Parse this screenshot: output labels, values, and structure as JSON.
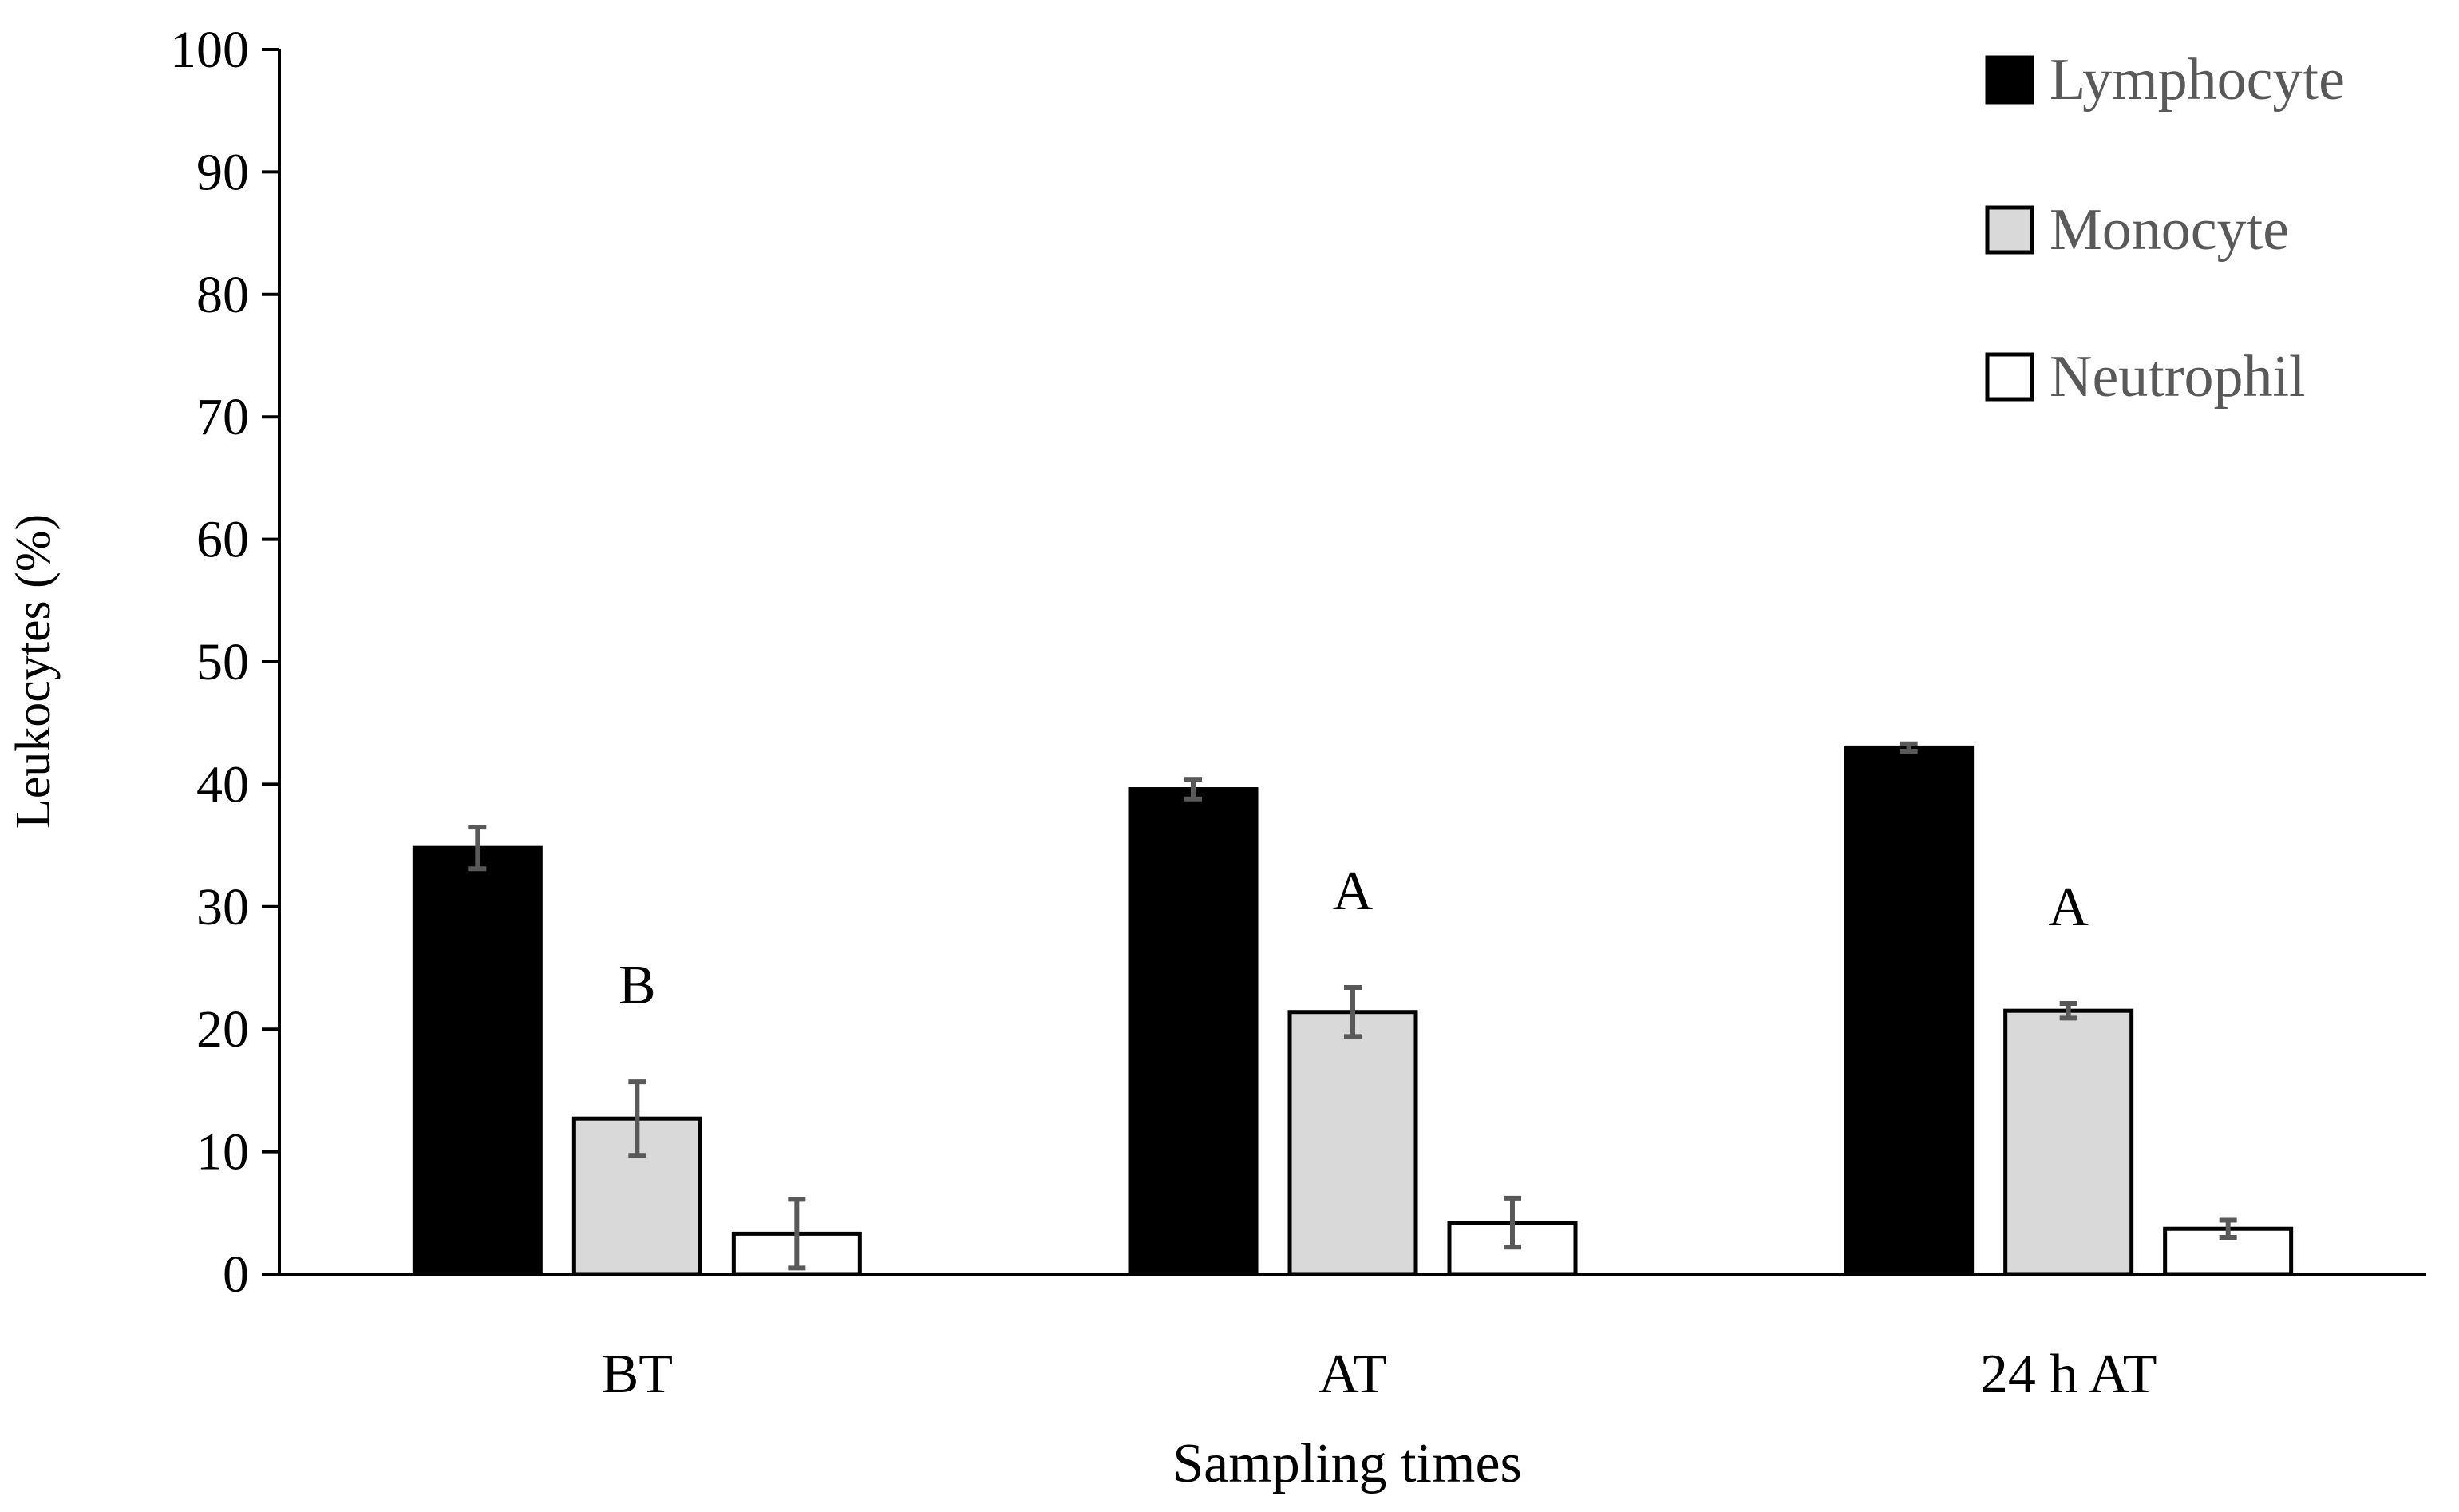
{
  "chart_data": {
    "type": "bar",
    "title": "",
    "xlabel": "Sampling times",
    "ylabel": "Leukocytes (%)",
    "ylim": [
      0,
      100
    ],
    "yticks": [
      0,
      10,
      20,
      30,
      40,
      50,
      60,
      70,
      80,
      90,
      100
    ],
    "grid": false,
    "legend_position": "top-right",
    "categories": [
      "BT",
      "AT",
      "24 h AT"
    ],
    "series": [
      {
        "name": "Lymphocyte",
        "color": "#000000",
        "values": [
          34.8,
          39.6,
          43.0
        ],
        "errors": [
          1.7,
          0.8,
          0.3
        ]
      },
      {
        "name": "Monocyte",
        "color": "#d9d9d9",
        "values": [
          12.7,
          21.4,
          21.5
        ],
        "errors": [
          3.0,
          2.0,
          0.6
        ]
      },
      {
        "name": "Neutrophil",
        "color": "#ffffff",
        "values": [
          3.3,
          4.2,
          3.7
        ],
        "errors": [
          2.8,
          2.0,
          0.7
        ]
      }
    ],
    "annotations": [
      {
        "category": "BT",
        "series": "Monocyte",
        "text": "B"
      },
      {
        "category": "AT",
        "series": "Monocyte",
        "text": "A"
      },
      {
        "category": "24 h AT",
        "series": "Monocyte",
        "text": "A"
      }
    ]
  }
}
